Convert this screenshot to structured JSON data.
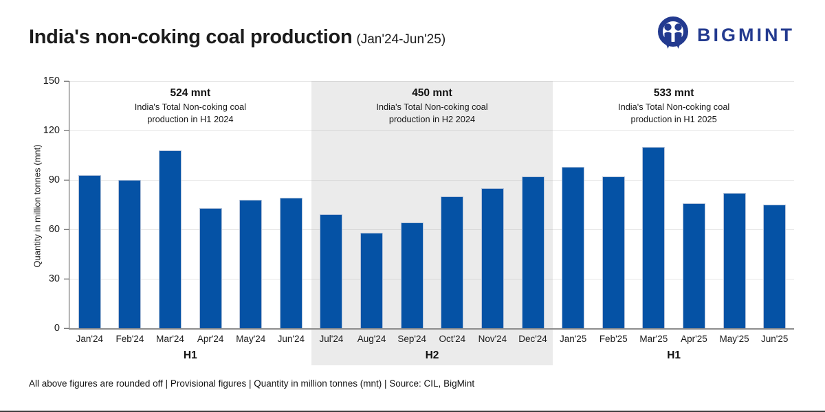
{
  "header": {
    "title": "India's non-coking coal production",
    "subtitle": "(Jan'24-Jun'25)",
    "brand_name": "BIGMINT",
    "brand_color": "#233a8f"
  },
  "chart_data": {
    "type": "bar",
    "title": "India's non-coking coal production (Jan'24-Jun'25)",
    "ylabel": "Quantity in million tonnes (mnt)",
    "ylim": [
      0,
      150
    ],
    "yticks": [
      0,
      30,
      60,
      90,
      120,
      150
    ],
    "grid": true,
    "bar_color": "#0552a5",
    "highlight_band_color": "#ebebeb",
    "groups": [
      {
        "label": "H1",
        "total": "524 mnt",
        "annotation": [
          "India's Total Non-coking coal",
          "production in H1 2024"
        ],
        "highlighted": false,
        "categories": [
          "Jan'24",
          "Feb'24",
          "Mar'24",
          "Apr'24",
          "May'24",
          "Jun'24"
        ],
        "values": [
          93,
          90,
          108,
          73,
          78,
          79
        ]
      },
      {
        "label": "H2",
        "total": "450 mnt",
        "annotation": [
          "India's Total Non-coking coal",
          "production in H2 2024"
        ],
        "highlighted": true,
        "categories": [
          "Jul'24",
          "Aug'24",
          "Sep'24",
          "Oct'24",
          "Nov'24",
          "Dec'24"
        ],
        "values": [
          69,
          58,
          64,
          80,
          85,
          92
        ]
      },
      {
        "label": "H1",
        "total": "533 mnt",
        "annotation": [
          "India's Total Non-coking coal",
          "production in H1 2025"
        ],
        "highlighted": false,
        "categories": [
          "Jan'25",
          "Feb'25",
          "Mar'25",
          "Apr'25",
          "May'25",
          "Jun'25"
        ],
        "values": [
          98,
          92,
          110,
          76,
          82,
          75
        ]
      }
    ]
  },
  "footer": {
    "note": "All above figures are rounded off  |  Provisional figures  |  Quantity in million tonnes (mnt)  |  Source: CIL, BigMint"
  }
}
